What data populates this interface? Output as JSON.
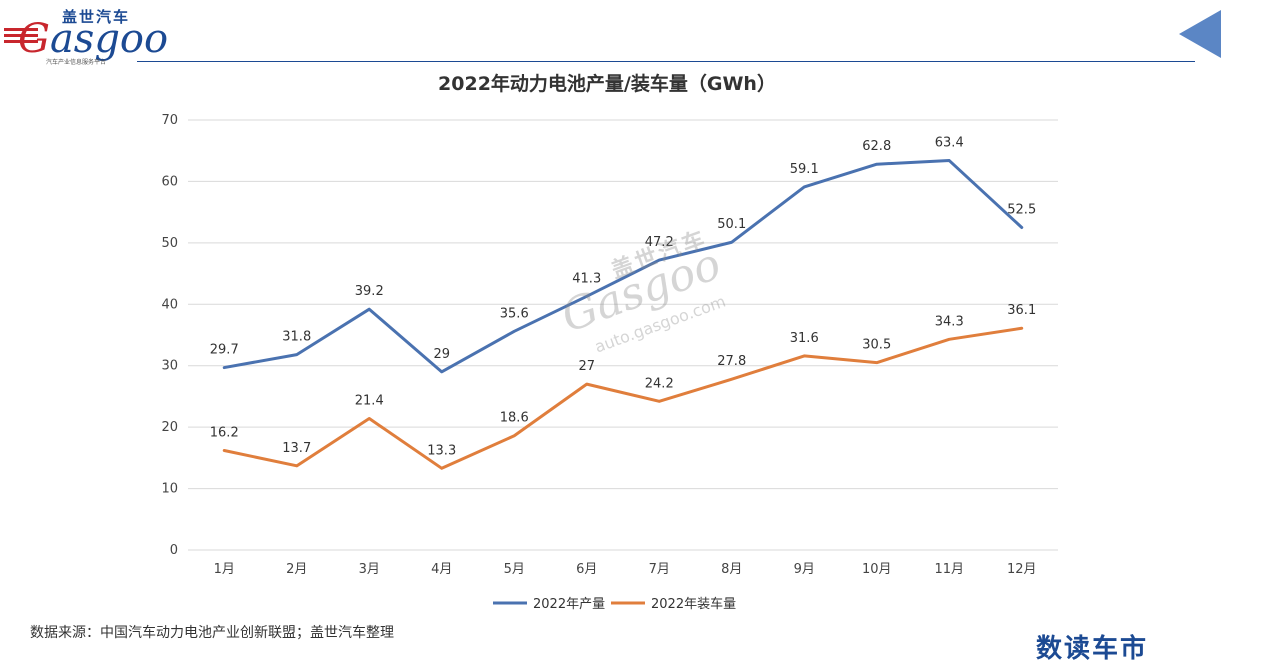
{
  "brand": {
    "logo_cn": "盖世汽车",
    "logo_word_g": "G",
    "logo_word_rest": "asgoo",
    "logo_sub": "汽车产业信息服务平台",
    "footer_brand": "数读车市",
    "primary_color": "#1c4a93",
    "accent_color": "#c8262d"
  },
  "watermark": {
    "cn": "盖世汽车",
    "word": "Gasgoo",
    "url": "auto.gasgoo.com"
  },
  "source_note": "数据来源：中国汽车动力电池产业创新联盟；盖世汽车整理",
  "chart_data": {
    "type": "line",
    "title": "2022年动力电池产量/装车量（GWh）",
    "categories": [
      "1月",
      "2月",
      "3月",
      "4月",
      "5月",
      "6月",
      "7月",
      "8月",
      "9月",
      "10月",
      "11月",
      "12月"
    ],
    "series": [
      {
        "name": "2022年产量",
        "color": "#4a72b0",
        "values": [
          29.7,
          31.8,
          39.2,
          29,
          35.6,
          41.3,
          47.2,
          50.1,
          59.1,
          62.8,
          63.4,
          52.5
        ]
      },
      {
        "name": "2022年装车量",
        "color": "#e07e3c",
        "values": [
          16.2,
          13.7,
          21.4,
          13.3,
          18.6,
          27,
          24.2,
          27.8,
          31.6,
          30.5,
          34.3,
          36.1
        ]
      }
    ],
    "ylim": [
      0,
      70
    ],
    "yticks": [
      0,
      10,
      20,
      30,
      40,
      50,
      60,
      70
    ],
    "grid": true,
    "legend_position": "bottom"
  }
}
